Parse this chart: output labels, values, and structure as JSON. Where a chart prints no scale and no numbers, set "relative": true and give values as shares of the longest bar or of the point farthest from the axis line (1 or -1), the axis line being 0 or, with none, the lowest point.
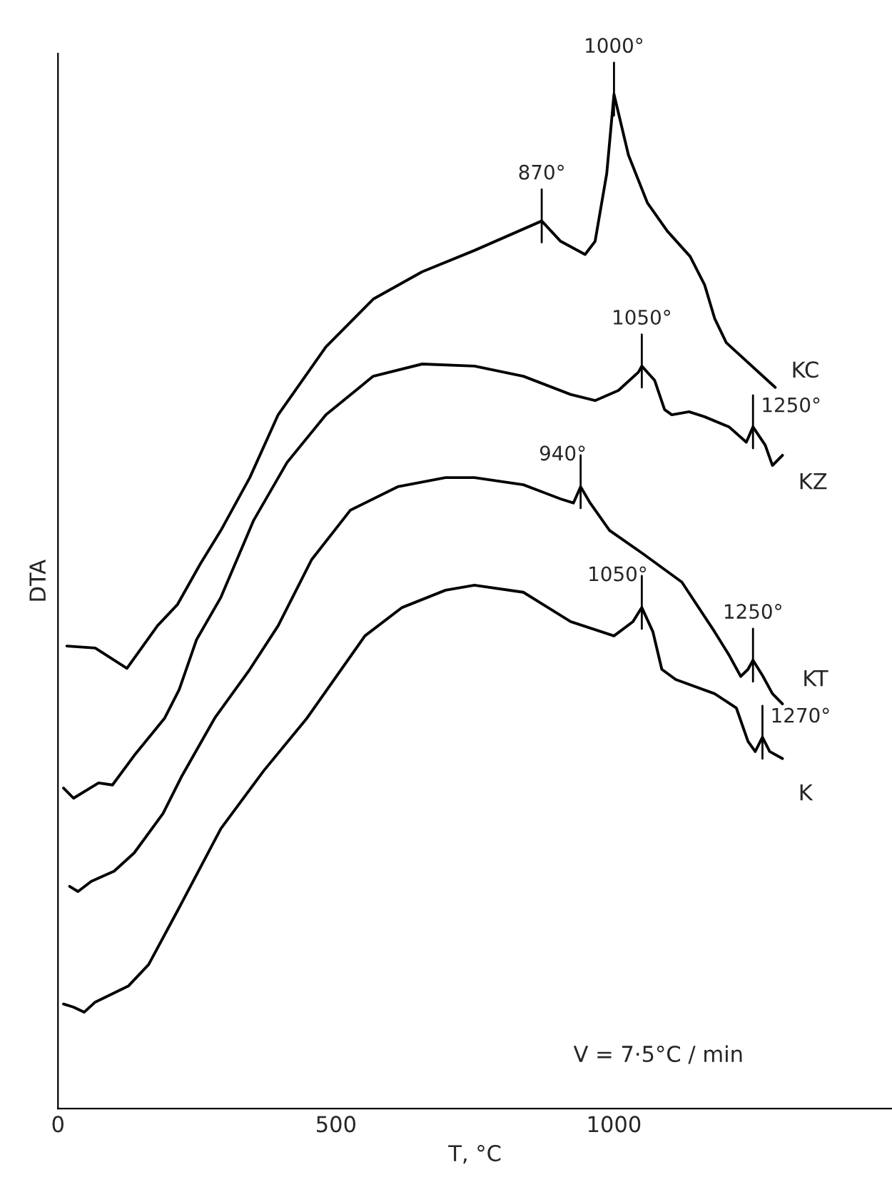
{
  "chart_data": {
    "type": "line",
    "relative": true,
    "xlabel": "T, °C",
    "ylabel": "DTA",
    "xlim": [
      0,
      1500
    ],
    "xticks": [
      0,
      500,
      1000
    ],
    "tick_labels": "x",
    "grid": false,
    "legend": false,
    "marker": "none",
    "line_style": "solid",
    "series": [
      {
        "name": "KC",
        "color": "#000000",
        "x": [
          16,
          67,
          124,
          179,
          215,
          256,
          293,
          345,
          396,
          482,
          567,
          655,
          749,
          870,
          904,
          948,
          966,
          987,
          1000,
          1026,
          1060,
          1096,
          1137,
          1163,
          1181,
          1202,
          1290
        ],
        "values": [
          0.456,
          0.454,
          0.434,
          0.476,
          0.497,
          0.537,
          0.57,
          0.622,
          0.684,
          0.751,
          0.798,
          0.825,
          0.846,
          0.875,
          0.855,
          0.842,
          0.855,
          0.922,
          1.0,
          0.94,
          0.893,
          0.865,
          0.84,
          0.812,
          0.779,
          0.755,
          0.711
        ]
      },
      {
        "name": "KZ",
        "color": "#000000",
        "x": [
          10,
          28,
          73,
          98,
          137,
          192,
          218,
          249,
          293,
          352,
          412,
          482,
          567,
          655,
          749,
          837,
          922,
          966,
          1008,
          1044,
          1050,
          1073,
          1091,
          1104,
          1135,
          1163,
          1207,
          1238,
          1250,
          1272,
          1285,
          1303
        ],
        "values": [
          0.316,
          0.306,
          0.321,
          0.319,
          0.348,
          0.385,
          0.413,
          0.462,
          0.504,
          0.58,
          0.637,
          0.684,
          0.722,
          0.734,
          0.732,
          0.722,
          0.704,
          0.698,
          0.708,
          0.726,
          0.732,
          0.718,
          0.689,
          0.684,
          0.687,
          0.682,
          0.672,
          0.657,
          0.672,
          0.654,
          0.634,
          0.644
        ]
      },
      {
        "name": "KT",
        "color": "#000000",
        "x": [
          21,
          36,
          60,
          101,
          137,
          189,
          223,
          282,
          345,
          396,
          456,
          526,
          611,
          697,
          749,
          837,
          904,
          927,
          940,
          956,
          992,
          1052,
          1122,
          1181,
          1207,
          1228,
          1241,
          1250,
          1267,
          1285,
          1303
        ],
        "values": [
          0.219,
          0.214,
          0.224,
          0.234,
          0.252,
          0.291,
          0.328,
          0.385,
          0.433,
          0.476,
          0.541,
          0.59,
          0.613,
          0.622,
          0.622,
          0.615,
          0.601,
          0.597,
          0.613,
          0.598,
          0.57,
          0.547,
          0.519,
          0.47,
          0.447,
          0.426,
          0.433,
          0.442,
          0.427,
          0.409,
          0.399
        ]
      },
      {
        "name": "K",
        "color": "#000000",
        "x": [
          10,
          28,
          47,
          67,
          127,
          163,
          215,
          293,
          370,
          448,
          552,
          619,
          697,
          749,
          837,
          922,
          1000,
          1034,
          1050,
          1070,
          1086,
          1111,
          1181,
          1220,
          1241,
          1254,
          1267,
          1280,
          1303
        ],
        "values": [
          0.103,
          0.1,
          0.095,
          0.105,
          0.121,
          0.142,
          0.195,
          0.276,
          0.333,
          0.385,
          0.466,
          0.494,
          0.511,
          0.516,
          0.509,
          0.48,
          0.466,
          0.48,
          0.494,
          0.47,
          0.433,
          0.423,
          0.409,
          0.395,
          0.362,
          0.352,
          0.366,
          0.352,
          0.345
        ]
      }
    ],
    "annotations": [
      {
        "text": "870°",
        "x": 870,
        "y": 0.875
      },
      {
        "text": "1000°",
        "x": 1000,
        "y": 1.0
      },
      {
        "text": "1050°",
        "x": 1050,
        "y": 0.732
      },
      {
        "text": "1250°",
        "x": 1250,
        "y": 0.672
      },
      {
        "text": "940°",
        "x": 940,
        "y": 0.613
      },
      {
        "text": "1050°",
        "x": 1050,
        "y": 0.494
      },
      {
        "text": "1250°",
        "x": 1250,
        "y": 0.442
      },
      {
        "text": "1270°",
        "x": 1267,
        "y": 0.366
      },
      "V = 7·5°C / min"
    ]
  }
}
